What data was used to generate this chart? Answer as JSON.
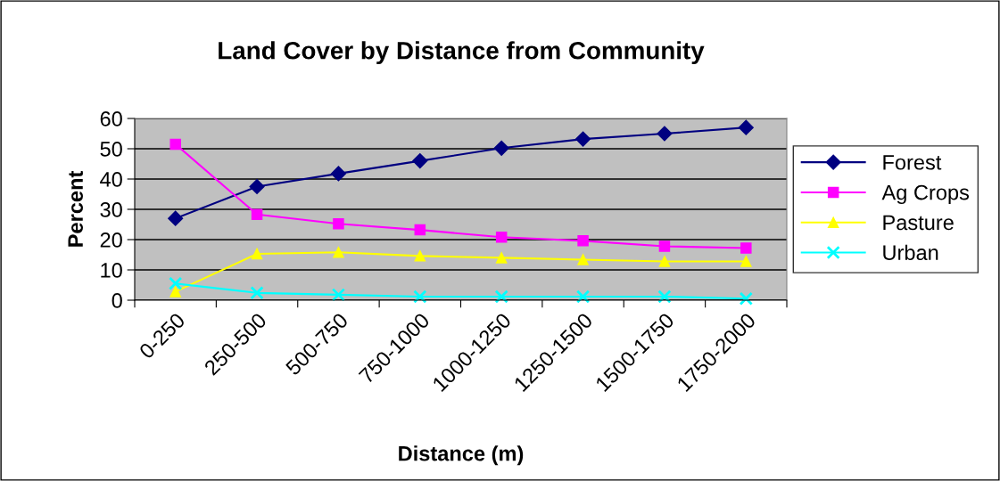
{
  "chart_data": {
    "type": "line",
    "title": "Land Cover by Distance from Community",
    "xlabel": "Distance (m)",
    "ylabel": "Percent",
    "categories": [
      "0-250",
      "250-500",
      "500-750",
      "750-1000",
      "1000-1250",
      "1250-1500",
      "1500-1750",
      "1750-2000"
    ],
    "series": [
      {
        "name": "Forest",
        "color": "#000080",
        "marker": "diamond",
        "values": [
          27,
          37.5,
          41.8,
          46,
          50.2,
          53.2,
          55,
          57
        ]
      },
      {
        "name": "Ag Crops",
        "color": "#ff00ff",
        "marker": "square",
        "values": [
          51.5,
          28.3,
          25.2,
          23.2,
          20.8,
          19.6,
          17.8,
          17.2
        ]
      },
      {
        "name": "Pasture",
        "color": "#ffff00",
        "marker": "triangle",
        "values": [
          2.8,
          15.3,
          15.8,
          14.6,
          14,
          13.4,
          12.8,
          12.8
        ]
      },
      {
        "name": "Urban",
        "color": "#00ffff",
        "marker": "cross",
        "values": [
          5.5,
          2.4,
          1.8,
          1.2,
          1.2,
          1.2,
          1.2,
          0.5
        ]
      }
    ],
    "ylim": [
      0,
      60
    ],
    "yticks": [
      0,
      10,
      20,
      30,
      40,
      50,
      60
    ],
    "grid": "y",
    "legend": "right"
  }
}
